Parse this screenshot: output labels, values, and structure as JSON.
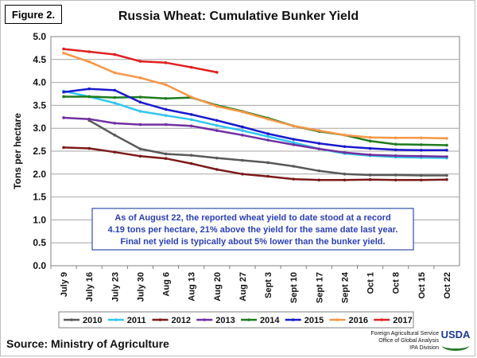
{
  "figure_label": "Figure 2.",
  "source": "Source: Ministry of Agriculture",
  "agency": [
    "Foreign Agricultural Service",
    "Office of Global Analysis",
    "IPA Division"
  ],
  "logo_text": "USDA",
  "chart_data": {
    "type": "line",
    "title": "Russia Wheat: Cumulative Bunker Yield",
    "xlabel": "",
    "ylabel": "Tons per hectare",
    "ylim": [
      0,
      5
    ],
    "yticks": [
      "0.0",
      "0.5",
      "1.0",
      "1.5",
      "2.0",
      "2.5",
      "3.0",
      "3.5",
      "4.0",
      "4.5",
      "5.0"
    ],
    "grid": true,
    "legend": "bottom",
    "categories": [
      "July 9",
      "July 16",
      "July 23",
      "July 30",
      "Aug 6",
      "Aug 13",
      "Aug 20",
      "Aug 27",
      "Sept 3",
      "Sept 10",
      "Sept 17",
      "Sept 24",
      "Oct 1",
      "Oct 8",
      "Oct 15",
      "Oct 22"
    ],
    "annotation": [
      "As of August 22, the reported wheat yield to date stood at a record",
      "4.19 tons per hectare, 21% above the yield for the same date last year.",
      "Final net yield is typically about 5% lower than the bunker yield."
    ],
    "series": [
      {
        "name": "2010",
        "color": "#595959",
        "values": [
          null,
          3.17,
          2.85,
          2.55,
          2.44,
          2.41,
          2.35,
          2.3,
          2.25,
          2.17,
          2.07,
          2.0,
          1.98,
          1.98,
          1.97,
          1.97
        ]
      },
      {
        "name": "2011",
        "color": "#33c6ee",
        "values": [
          3.81,
          3.69,
          3.55,
          3.37,
          3.28,
          3.19,
          3.06,
          2.95,
          2.82,
          2.69,
          2.55,
          2.45,
          2.4,
          2.37,
          2.36,
          2.35
        ]
      },
      {
        "name": "2012",
        "color": "#7b1a1a",
        "values": [
          2.58,
          2.56,
          2.48,
          2.39,
          2.34,
          2.23,
          2.1,
          2.0,
          1.95,
          1.89,
          1.87,
          1.87,
          1.88,
          1.87,
          1.87,
          1.88
        ]
      },
      {
        "name": "2013",
        "color": "#7030a0",
        "values": [
          3.23,
          3.2,
          3.11,
          3.08,
          3.08,
          3.05,
          2.95,
          2.85,
          2.74,
          2.64,
          2.55,
          2.47,
          2.42,
          2.4,
          2.39,
          2.38
        ]
      },
      {
        "name": "2014",
        "color": "#1e7b1e",
        "values": [
          3.69,
          3.69,
          3.67,
          3.68,
          3.65,
          3.67,
          3.5,
          3.37,
          3.22,
          3.05,
          2.93,
          2.85,
          2.72,
          2.65,
          2.64,
          2.63
        ]
      },
      {
        "name": "2015",
        "color": "#1a1acc",
        "values": [
          3.79,
          3.86,
          3.83,
          3.57,
          3.41,
          3.3,
          3.17,
          3.03,
          2.88,
          2.76,
          2.67,
          2.6,
          2.56,
          2.53,
          2.52,
          2.52
        ]
      },
      {
        "name": "2016",
        "color": "#f79646",
        "values": [
          4.64,
          4.45,
          4.21,
          4.1,
          3.95,
          3.68,
          3.48,
          3.36,
          3.2,
          3.05,
          2.95,
          2.85,
          2.8,
          2.79,
          2.79,
          2.78
        ]
      },
      {
        "name": "2017",
        "color": "#e02020",
        "values": [
          4.73,
          4.67,
          4.61,
          4.46,
          4.43,
          4.33,
          4.22,
          null,
          null,
          null,
          null,
          null,
          null,
          null,
          null,
          null
        ]
      }
    ]
  }
}
